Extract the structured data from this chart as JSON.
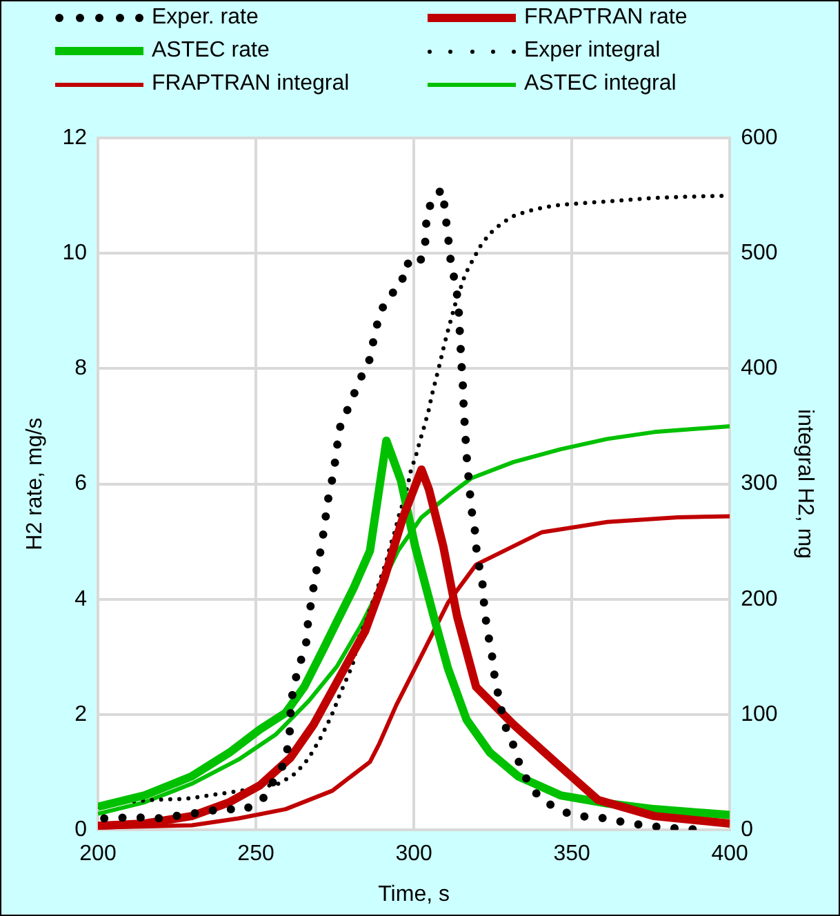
{
  "chart_data": {
    "type": "line",
    "xlabel": "Time, s",
    "ylabel": "H2 rate, mg/s",
    "y2label": "integral H2, mg",
    "xlim": [
      200,
      400
    ],
    "xticks": [
      200,
      250,
      300,
      350,
      400
    ],
    "ylim": [
      0,
      12
    ],
    "yticks": [
      0,
      2,
      4,
      6,
      8,
      10,
      12
    ],
    "y2lim": [
      0,
      600
    ],
    "y2ticks": [
      0,
      100,
      200,
      300,
      400,
      500,
      600
    ],
    "grid": true,
    "legend": "top",
    "marker": "none",
    "series": [
      {
        "name": "Exper. rate",
        "color": "#000000",
        "line_style": "dotted",
        "x": [
          202,
          211,
          219,
          229.7,
          240,
          246,
          252,
          258.7,
          260.6,
          260.9,
          261.6,
          263.4,
          265.8,
          266.5,
          267.7,
          268.9,
          270.4,
          271.7,
          272.7,
          274.2,
          275.4,
          276.3,
          279,
          281,
          283,
          285.8,
          287.5,
          289.2,
          292.2,
          295.9,
          297.4,
          301.7,
          303.6,
          304,
          305.9,
          309.1,
          310,
          311,
          311.8,
          313.4,
          314.2,
          314.6,
          315,
          315.5,
          315.8,
          316.3,
          316.8,
          318.2,
          319.4,
          320,
          321.6,
          322.2,
          323.1,
          324.6,
          325.6,
          328.6,
          331.5,
          333.8,
          337.2,
          341.2,
          347.1,
          352,
          361.2,
          366.5,
          374.6,
          380.4,
          385,
          390
        ],
        "values": [
          0.2,
          0.22,
          0.2,
          0.28,
          0.37,
          0.34,
          0.52,
          1.13,
          1.54,
          1.98,
          2.38,
          2.81,
          3.18,
          3.6,
          4.02,
          4.43,
          4.82,
          5.26,
          5.69,
          6.09,
          6.5,
          6.94,
          7.29,
          7.55,
          7.82,
          8.12,
          8.56,
          8.96,
          9.27,
          9.42,
          9.83,
          9.78,
          10.2,
          10.6,
          10.98,
          11.1,
          10.66,
          10.2,
          9.8,
          9.42,
          9.0,
          8.58,
          8.14,
          7.71,
          7.29,
          6.85,
          6.42,
          5.57,
          5.16,
          4.73,
          4.35,
          3.93,
          3.5,
          3.08,
          2.64,
          1.84,
          1.47,
          1.08,
          0.72,
          0.5,
          0.32,
          0.24,
          0.2,
          0.13,
          0.07,
          0.03,
          0.03,
          0
        ]
      },
      {
        "name": "FRAPTRAN rate",
        "color": "#c00000",
        "line_style": "solid",
        "x": [
          200,
          214.8,
          229.7,
          241.6,
          251.2,
          260.9,
          268.3,
          277.2,
          284.6,
          290.6,
          296.5,
          302.4,
          304.8,
          309.3,
          313.7,
          319.7,
          331.5,
          344.9,
          358.3,
          376.1,
          400
        ],
        "values": [
          0.07,
          0.11,
          0.24,
          0.48,
          0.77,
          1.25,
          1.83,
          2.72,
          3.45,
          4.35,
          5.41,
          6.25,
          5.9,
          4.92,
          3.7,
          2.48,
          1.83,
          1.17,
          0.52,
          0.24,
          0.11
        ]
      },
      {
        "name": "ASTEC rate",
        "color": "#00c000",
        "line_style": "solid",
        "x": [
          200,
          214.8,
          229.7,
          241.6,
          251.2,
          259.4,
          265.3,
          271.3,
          275.7,
          280.9,
          286.1,
          291.3,
          295.9,
          300.4,
          306.3,
          310.8,
          316.7,
          324.1,
          333,
          346.4,
          361.2,
          376.1,
          400
        ],
        "values": [
          0.4,
          0.6,
          0.93,
          1.34,
          1.74,
          2.03,
          2.48,
          3.13,
          3.62,
          4.19,
          4.84,
          6.75,
          6.06,
          4.92,
          3.7,
          2.8,
          1.91,
          1.34,
          0.93,
          0.6,
          0.46,
          0.36,
          0.26
        ]
      },
      {
        "name": "Exper integral",
        "color": "#000000",
        "line_style": "dotted",
        "axis": "y2",
        "x": [
          200,
          208,
          217.4,
          228,
          237.9,
          247.5,
          257.1,
          261.6,
          265.3,
          268,
          270.5,
          272.7,
          274.7,
          276.5,
          278.4,
          280.5,
          282.9,
          284.9,
          286.5,
          288.2,
          289.7,
          291.2,
          292.5,
          293.9,
          295.2,
          296.7,
          298,
          299,
          300.7,
          302,
          303.3,
          304.7,
          305.7,
          306.9,
          308.1,
          309.3,
          310.5,
          311.8,
          313.1,
          316.3,
          318.6,
          321,
          324,
          327.8,
          332,
          336.8,
          341.5,
          346.4,
          356.3,
          366.1,
          376.1,
          386,
          400
        ],
        "values": [
          20,
          24,
          26,
          27,
          31,
          35,
          40,
          47,
          57,
          68,
          80,
          92,
          104,
          117,
          129,
          142,
          169,
          181,
          194,
          207,
          220,
          232,
          246,
          258,
          272,
          285,
          298,
          311,
          325,
          338,
          350,
          364,
          377,
          390,
          403,
          417,
          430,
          443,
          456,
          482,
          494,
          506,
          517,
          526,
          533,
          537,
          540,
          542,
          544,
          546,
          548,
          549,
          550
        ]
      },
      {
        "name": "FRAPTRAN integral",
        "color": "#c00000",
        "line_style": "solid",
        "axis": "y2",
        "x": [
          200,
          229.7,
          244.5,
          259.4,
          274.2,
          286.1,
          289.1,
          294.4,
          303.3,
          310.8,
          319.7,
          340.4,
          361.2,
          383.5,
          400
        ],
        "values": [
          2,
          4,
          10,
          18,
          34,
          59,
          75,
          108,
          156,
          197,
          230,
          258,
          267,
          271,
          272
        ]
      },
      {
        "name": "ASTEC integral",
        "color": "#00c000",
        "line_style": "solid",
        "axis": "y2",
        "x": [
          200,
          214.8,
          229.7,
          244.5,
          256.4,
          266.8,
          275.7,
          283.2,
          289.1,
          295,
          302.4,
          311.4,
          318.2,
          331.5,
          346.4,
          361.2,
          376.1,
          400
        ],
        "values": [
          14,
          24,
          40,
          61,
          83,
          112,
          142,
          177,
          209,
          242,
          271,
          291,
          305,
          319,
          330,
          339,
          345,
          350
        ]
      }
    ]
  }
}
